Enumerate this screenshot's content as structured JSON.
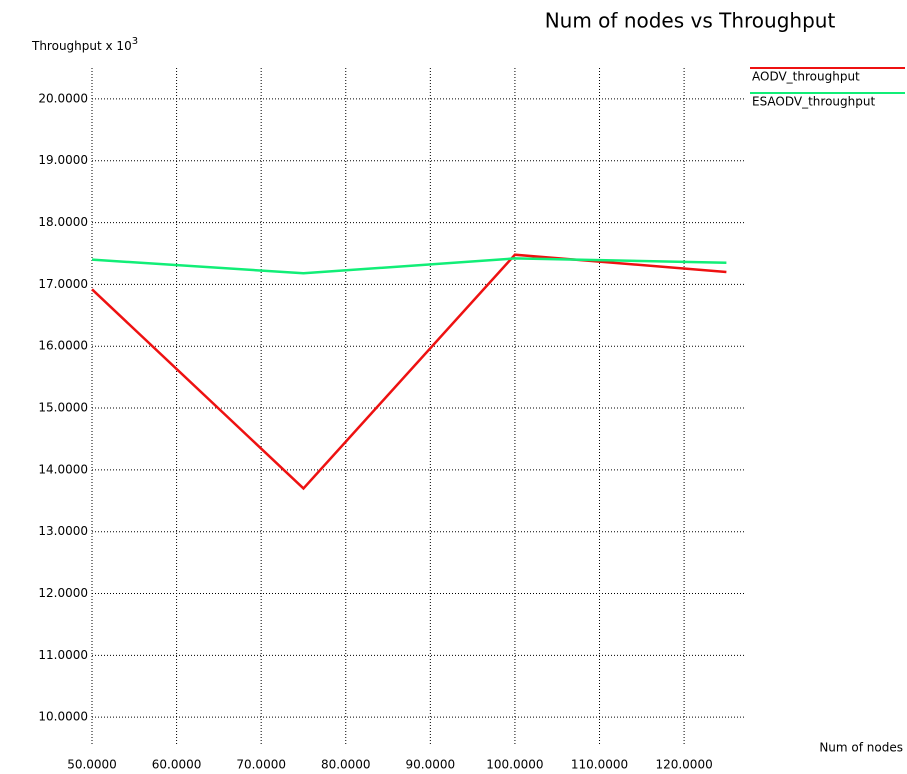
{
  "chart_data": {
    "type": "line",
    "title": "Num of nodes vs Throughput",
    "y_label": "Throughput x 10",
    "y_label_exponent": "3",
    "x_label": "Num of nodes",
    "x": [
      50,
      75,
      100,
      125
    ],
    "series": [
      {
        "name": "AODV_throughput",
        "color": "#ee1111",
        "values": [
          16.92,
          13.7,
          17.48,
          17.2
        ]
      },
      {
        "name": "ESAODV_throughput",
        "color": "#11ee77",
        "values": [
          17.4,
          17.18,
          17.42,
          17.35
        ]
      }
    ],
    "xlim": [
      50,
      127.2
    ],
    "ylim": [
      9.55,
      20.5
    ],
    "xticks": [
      {
        "value": 50,
        "label": "50.0000"
      },
      {
        "value": 60,
        "label": "60.0000"
      },
      {
        "value": 70,
        "label": "70.0000"
      },
      {
        "value": 80,
        "label": "80.0000"
      },
      {
        "value": 90,
        "label": "90.0000"
      },
      {
        "value": 100,
        "label": "100.0000"
      },
      {
        "value": 110,
        "label": "110.0000"
      },
      {
        "value": 120,
        "label": "120.0000"
      }
    ],
    "yticks": [
      {
        "value": 10,
        "label": "10.0000"
      },
      {
        "value": 11,
        "label": "11.0000"
      },
      {
        "value": 12,
        "label": "12.0000"
      },
      {
        "value": 13,
        "label": "13.0000"
      },
      {
        "value": 14,
        "label": "14.0000"
      },
      {
        "value": 15,
        "label": "15.0000"
      },
      {
        "value": 16,
        "label": "16.0000"
      },
      {
        "value": 17,
        "label": "17.0000"
      },
      {
        "value": 18,
        "label": "18.0000"
      },
      {
        "value": 19,
        "label": "19.0000"
      },
      {
        "value": 20,
        "label": "20.0000"
      }
    ],
    "grid": true
  }
}
